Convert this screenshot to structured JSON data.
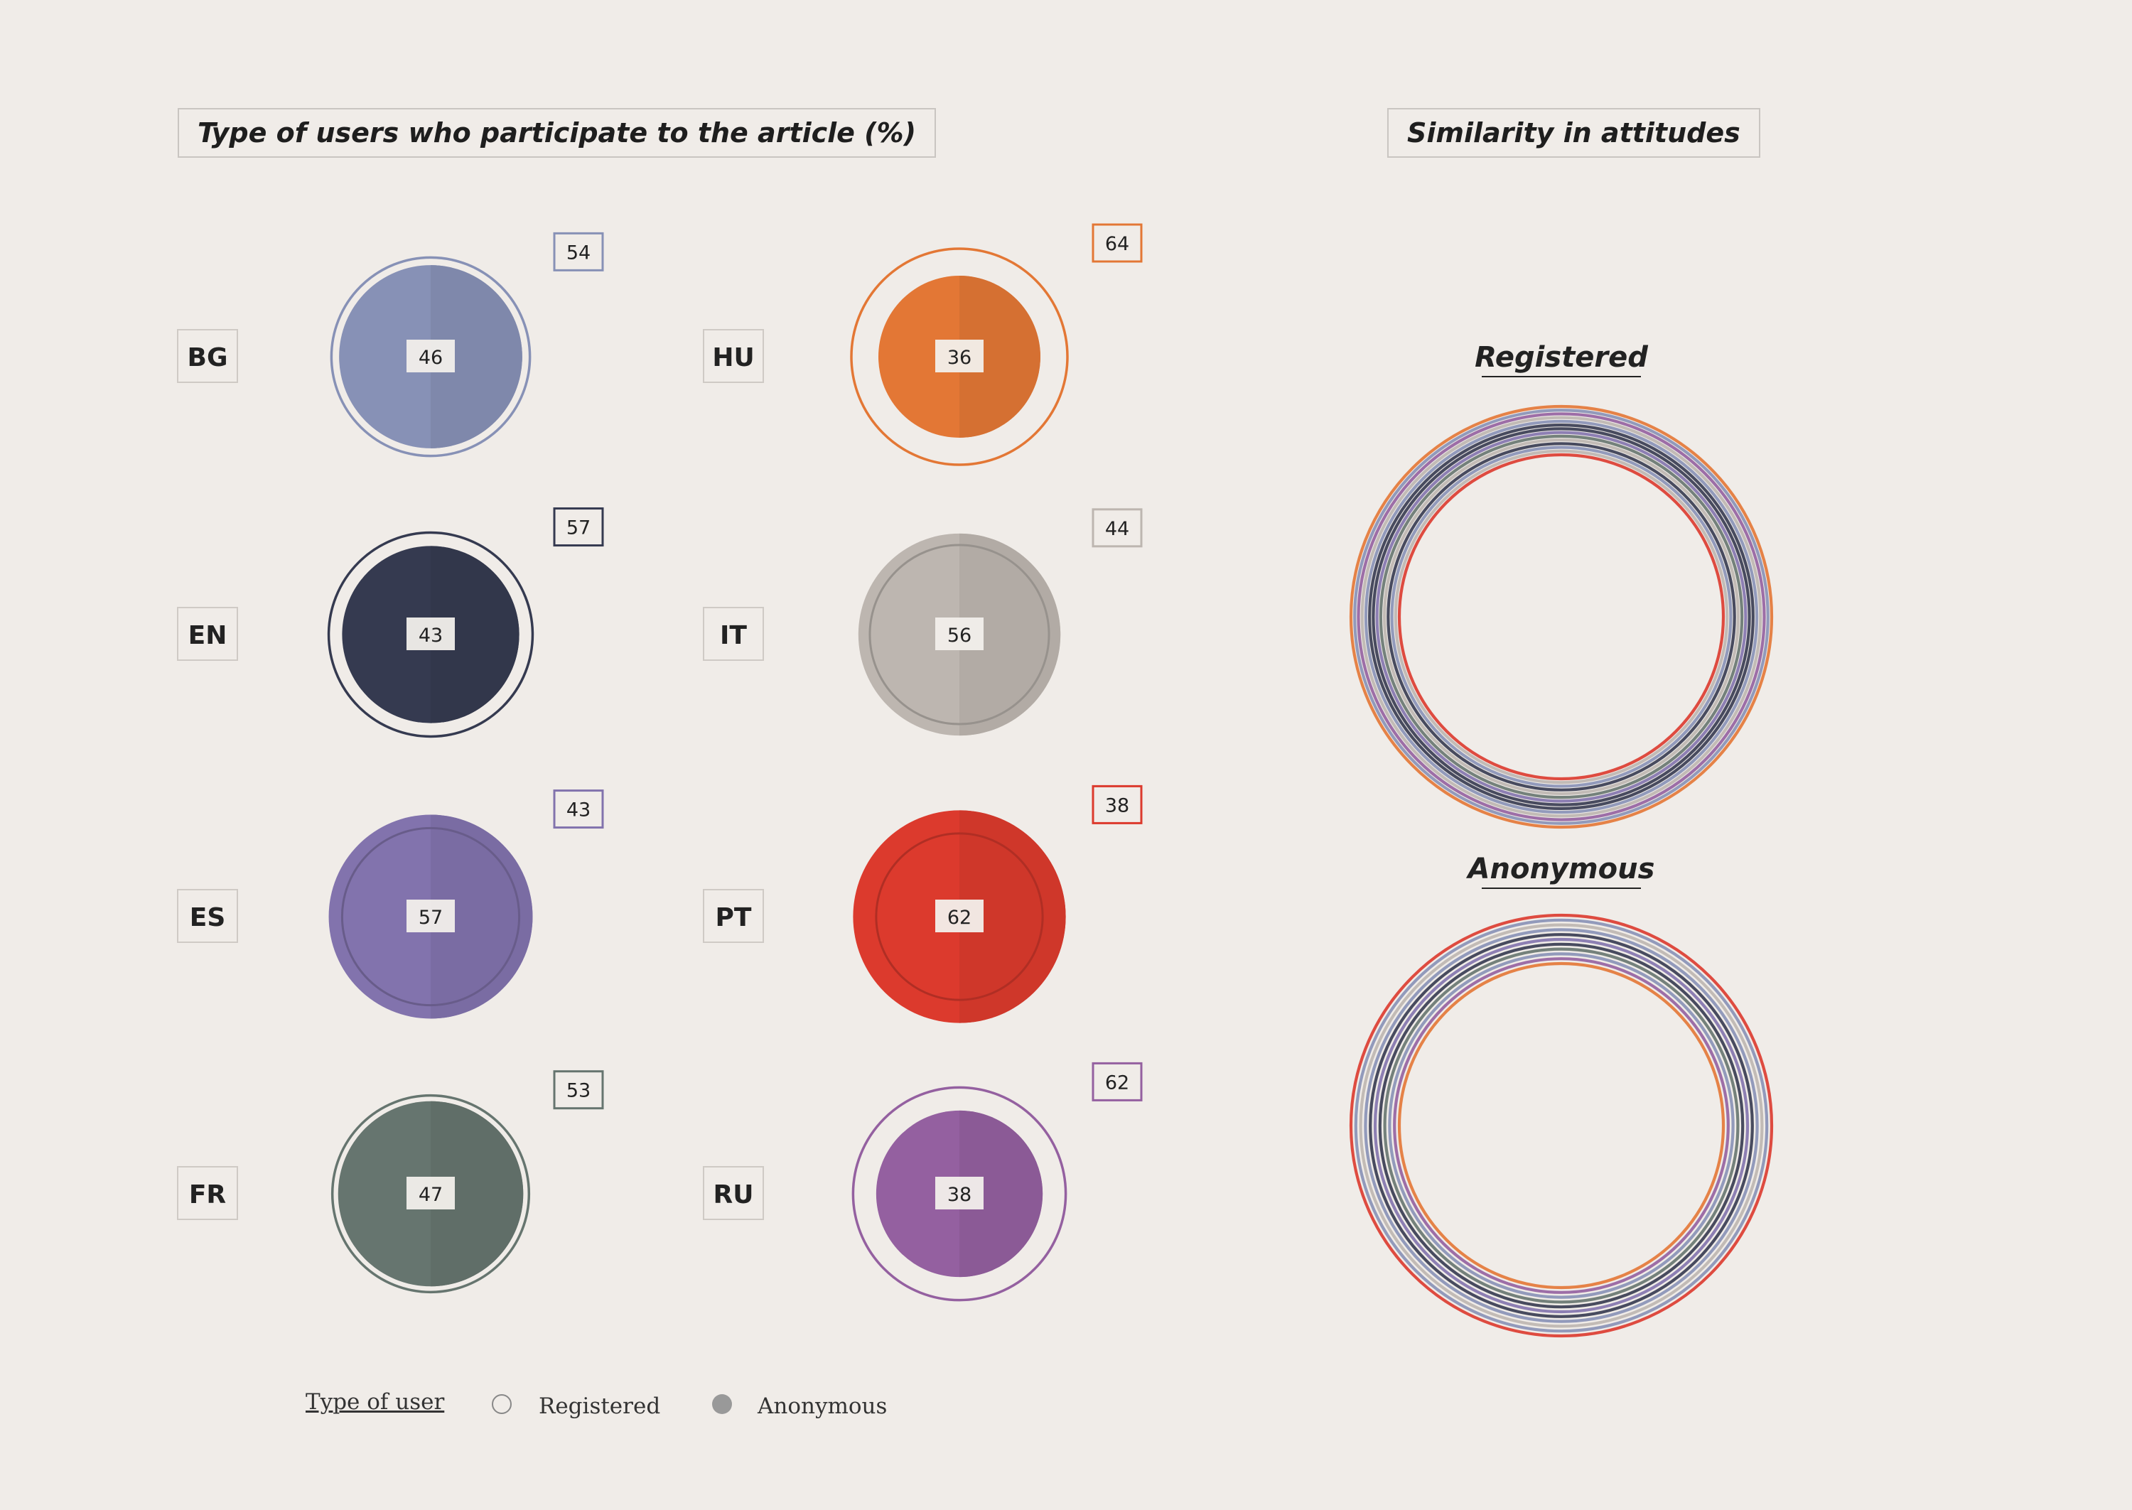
{
  "left_title": "Type of users who participate to the article (%)",
  "right_title": "Similarity in attitudes",
  "legend": {
    "title": "Type of user",
    "registered_label": "Registered",
    "anonymous_label": "Anonymous",
    "registered_icon": "hollow-circle",
    "anonymous_icon": "filled-circle"
  },
  "colors": {
    "background": "#f0ece8",
    "BG": "#8791b6",
    "EN": "#353a50",
    "ES": "#8273ad",
    "FR": "#66756f",
    "HU": "#e37735",
    "IT": "#bdb6b0",
    "PT": "#dc3a2d",
    "RU": "#9460a0"
  },
  "chart_data": [
    {
      "type": "bubble",
      "title": "Type of users who participate to the article (%)",
      "series": [
        {
          "name": "Registered",
          "values": [
            54,
            57,
            43,
            53,
            64,
            44,
            38,
            62
          ]
        },
        {
          "name": "Anonymous",
          "values": [
            46,
            43,
            57,
            47,
            36,
            56,
            62,
            38
          ]
        }
      ],
      "categories": [
        "BG",
        "EN",
        "ES",
        "FR",
        "HU",
        "IT",
        "PT",
        "RU"
      ]
    },
    {
      "type": "concentric-rings",
      "title": "Similarity in attitudes",
      "panels": [
        {
          "label": "Registered",
          "ring_order_outer_to_inner": [
            "HU",
            "BG",
            "RU",
            "IT",
            "BG",
            "EN",
            "EN",
            "ES",
            "FR",
            "IT",
            "EN",
            "BG",
            "IT",
            "PT"
          ]
        },
        {
          "label": "Anonymous",
          "ring_order_outer_to_inner": [
            "PT",
            "BG",
            "IT",
            "BG",
            "EN",
            "ES",
            "EN",
            "FR",
            "BG",
            "RU",
            "HU"
          ]
        }
      ]
    }
  ]
}
